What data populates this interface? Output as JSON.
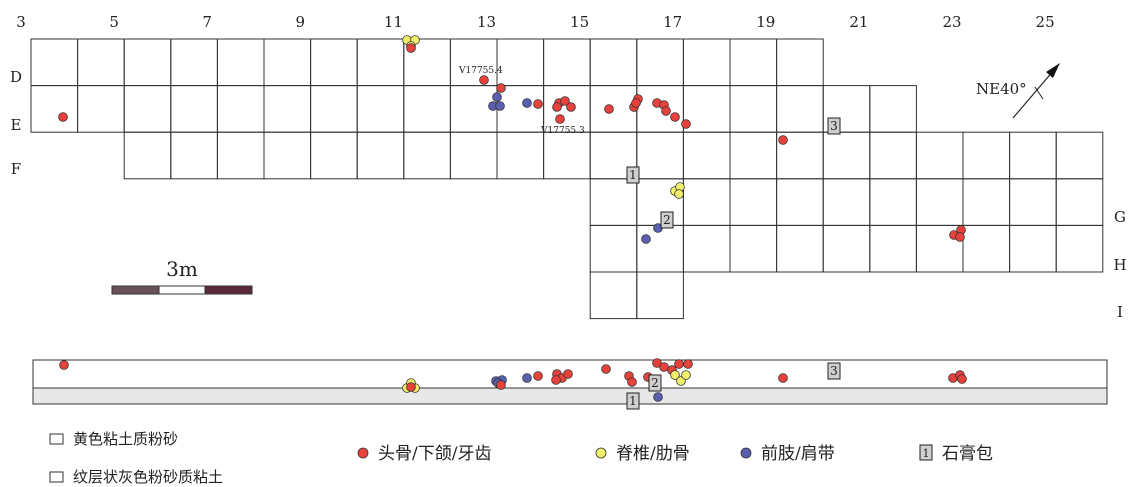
{
  "column_labels": [
    "3",
    "5",
    "7",
    "9",
    "11",
    "13",
    "15",
    "17",
    "19",
    "21",
    "23",
    "25"
  ],
  "row_labels_left": [
    "D",
    "E",
    "F"
  ],
  "row_labels_right": [
    "G",
    "H",
    "I"
  ],
  "scale_bar_label": "3m",
  "north_label": "NE40°",
  "specimen_labels": [
    "V17755.4",
    "V17755.3"
  ],
  "cast_markers": [
    "1",
    "2",
    "3"
  ],
  "legend": {
    "strata": [
      "黄色粘土质粉砂",
      "纹层状灰色粉砂质粘土"
    ],
    "bones": [
      {
        "label": "头骨/下颌/牙齿",
        "color": "#e8413b"
      },
      {
        "label": "脊椎/肋骨",
        "color": "#f2ef6a"
      },
      {
        "label": "前肢/肩带",
        "color": "#5a5fb0"
      }
    ],
    "cast_label": "石膏包",
    "cast_marker": "1"
  },
  "colors": {
    "skull": "#e8413b",
    "vertebra": "#f2ef6a",
    "forelimb": "#5a5fb0",
    "grid": "#333333",
    "section_band": "#e8e8e8"
  }
}
